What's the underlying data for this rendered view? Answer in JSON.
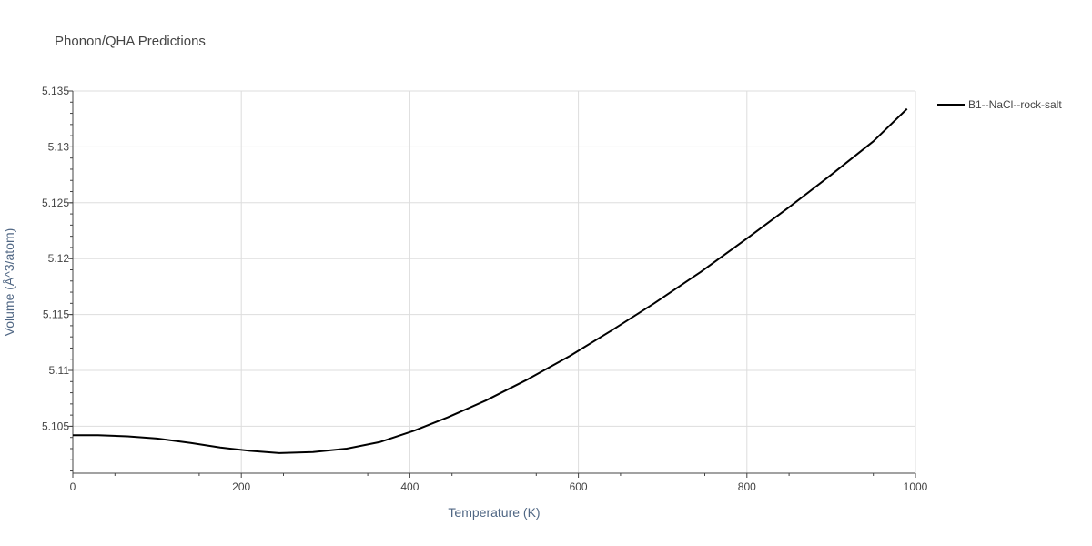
{
  "chart_data": {
    "type": "line",
    "title": "Phonon/QHA Predictions",
    "xlabel": "Temperature (K)",
    "ylabel": "Volume (Å^3/atom)",
    "xlim": [
      0,
      1000
    ],
    "ylim": [
      5.1008,
      5.135
    ],
    "x_ticks": [
      0,
      200,
      400,
      600,
      800,
      1000
    ],
    "x_tick_labels": [
      "0",
      "200",
      "400",
      "600",
      "800",
      "1000"
    ],
    "y_ticks": [
      5.105,
      5.11,
      5.115,
      5.12,
      5.125,
      5.13,
      5.135
    ],
    "y_tick_labels": [
      "5.105",
      "5.11",
      "5.115",
      "5.12",
      "5.125",
      "5.13",
      "5.135"
    ],
    "grid": true,
    "legend_position": "top-right",
    "series": [
      {
        "name": "B1--NaCl--rock-salt",
        "color": "#000000",
        "x": [
          0,
          30,
          65,
          100,
          140,
          175,
          210,
          245,
          285,
          325,
          365,
          405,
          445,
          490,
          540,
          590,
          640,
          690,
          745,
          800,
          850,
          900,
          950,
          990
        ],
        "y": [
          5.1042,
          5.1042,
          5.1041,
          5.1039,
          5.1035,
          5.1031,
          5.1028,
          5.1026,
          5.1027,
          5.103,
          5.1036,
          5.1046,
          5.1058,
          5.1073,
          5.1092,
          5.1113,
          5.1136,
          5.116,
          5.1188,
          5.1218,
          5.1246,
          5.1275,
          5.1305,
          5.1334
        ]
      }
    ]
  }
}
